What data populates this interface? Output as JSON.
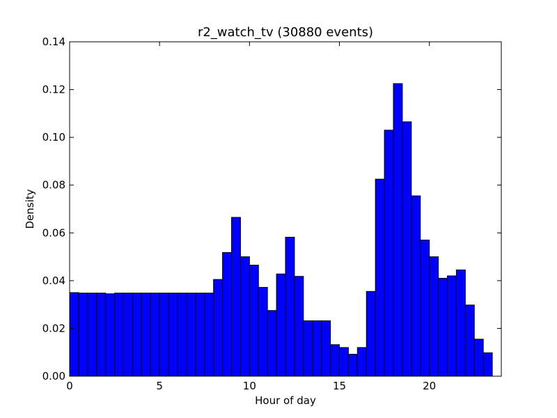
{
  "chart_data": {
    "type": "bar",
    "title": "r2_watch_tv (30880 events)",
    "xlabel": "Hour of day",
    "ylabel": "Density",
    "xlim": [
      0,
      24
    ],
    "ylim": [
      0,
      0.14
    ],
    "x_ticks": [
      0,
      5,
      10,
      15,
      20
    ],
    "x_tick_labels": [
      "0",
      "5",
      "10",
      "15",
      "20"
    ],
    "y_ticks": [
      0,
      0.02,
      0.04,
      0.06,
      0.08,
      0.1,
      0.12,
      0.14
    ],
    "y_tick_labels": [
      "0.00",
      "0.02",
      "0.04",
      "0.06",
      "0.08",
      "0.10",
      "0.12",
      "0.14"
    ],
    "grid": false,
    "bin_width": 0.5,
    "bin_starts": [
      0,
      0.5,
      1,
      1.5,
      2,
      2.5,
      3,
      3.5,
      4,
      4.5,
      5,
      5.5,
      6,
      6.5,
      7,
      7.5,
      8,
      8.5,
      9,
      9.5,
      10,
      10.5,
      11,
      11.5,
      12,
      12.5,
      13,
      13.5,
      14,
      14.5,
      15,
      15.5,
      16,
      16.5,
      17,
      17.5,
      18,
      18.5,
      19,
      19.5,
      20,
      20.5,
      21,
      21.5,
      22,
      22.5,
      23,
      23.5
    ],
    "values": [
      0.035,
      0.0348,
      0.0348,
      0.0348,
      0.0345,
      0.0348,
      0.0348,
      0.0348,
      0.0348,
      0.0348,
      0.0348,
      0.0348,
      0.0348,
      0.0348,
      0.0348,
      0.0348,
      0.0405,
      0.0518,
      0.0665,
      0.05,
      0.0465,
      0.0372,
      0.0275,
      0.0428,
      0.0582,
      0.0418,
      0.0232,
      0.0232,
      0.0232,
      0.0132,
      0.012,
      0.0092,
      0.012,
      0.0355,
      0.0825,
      0.103,
      0.1225,
      0.1065,
      0.0755,
      0.057,
      0.05,
      0.041,
      0.042,
      0.0445,
      0.0298,
      0.0155,
      0.0098,
      0.0
    ],
    "colors": {
      "bar_fill": "#0000ff",
      "bar_edge": "#000000",
      "axes": "#000000",
      "background": "#ffffff"
    }
  }
}
